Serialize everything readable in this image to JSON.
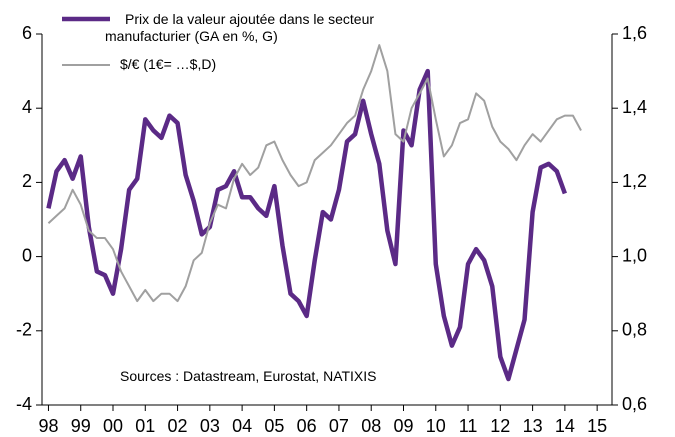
{
  "chart_data": {
    "type": "line",
    "annotation": "Sources : Datastream, Eurostat, NATIXIS",
    "xlim": [
      1997.8,
      2015.46
    ],
    "xticks": [
      {
        "value": 1998,
        "label": "98"
      },
      {
        "value": 1999,
        "label": "99"
      },
      {
        "value": 2000,
        "label": "00"
      },
      {
        "value": 2001,
        "label": "01"
      },
      {
        "value": 2002,
        "label": "02"
      },
      {
        "value": 2003,
        "label": "03"
      },
      {
        "value": 2004,
        "label": "04"
      },
      {
        "value": 2005,
        "label": "05"
      },
      {
        "value": 2006,
        "label": "06"
      },
      {
        "value": 2007,
        "label": "07"
      },
      {
        "value": 2008,
        "label": "08"
      },
      {
        "value": 2009,
        "label": "09"
      },
      {
        "value": 2010,
        "label": "10"
      },
      {
        "value": 2011,
        "label": "11"
      },
      {
        "value": 2012,
        "label": "12"
      },
      {
        "value": 2013,
        "label": "13"
      },
      {
        "value": 2014,
        "label": "14"
      },
      {
        "value": 2015,
        "label": "15"
      }
    ],
    "ylim": [
      -4,
      6
    ],
    "yticks": [
      -4,
      -2,
      0,
      2,
      4,
      6
    ],
    "y2lim": [
      0.6,
      1.6
    ],
    "y2ticks": [
      {
        "value": 0.6,
        "label": "0,6"
      },
      {
        "value": 0.8,
        "label": "0,8"
      },
      {
        "value": 1.0,
        "label": "1,0"
      },
      {
        "value": 1.2,
        "label": "1,2"
      },
      {
        "value": 1.4,
        "label": "1,4"
      },
      {
        "value": 1.6,
        "label": "1,6"
      }
    ],
    "grid": false,
    "series": [
      {
        "name": "Prix de la valeur ajoutée dans le secteur manufacturier (GA en %, G)",
        "color": "#5b2a86",
        "x": [
          1998,
          1998.25,
          1998.5,
          1998.75,
          1999,
          1999.25,
          1999.5,
          1999.75,
          2000,
          2000.25,
          2000.5,
          2000.75,
          2001,
          2001.25,
          2001.5,
          2001.75,
          2002,
          2002.25,
          2002.5,
          2002.75,
          2003,
          2003.25,
          2003.5,
          2003.75,
          2004,
          2004.25,
          2004.5,
          2004.75,
          2005,
          2005.25,
          2005.5,
          2005.75,
          2006,
          2006.25,
          2006.5,
          2006.75,
          2007,
          2007.25,
          2007.5,
          2007.75,
          2008,
          2008.25,
          2008.5,
          2008.75,
          2009,
          2009.25,
          2009.5,
          2009.75,
          2010,
          2010.25,
          2010.5,
          2010.75,
          2011,
          2011.25,
          2011.5,
          2011.75,
          2012,
          2012.25,
          2012.5,
          2012.75,
          2013,
          2013.25,
          2013.5,
          2013.75,
          2014
        ],
        "values": [
          1.3,
          2.3,
          2.6,
          2.1,
          2.7,
          0.8,
          -0.4,
          -0.5,
          -1.0,
          0.2,
          1.8,
          2.1,
          3.7,
          3.4,
          3.2,
          3.8,
          3.6,
          2.2,
          1.5,
          0.6,
          0.8,
          1.8,
          1.9,
          2.3,
          1.6,
          1.6,
          1.3,
          1.1,
          1.9,
          0.3,
          -1.0,
          -1.2,
          -1.6,
          -0.1,
          1.2,
          1.0,
          1.8,
          3.1,
          3.3,
          4.2,
          3.3,
          2.5,
          0.7,
          -0.2,
          3.4,
          3.0,
          4.5,
          5.0,
          -0.2,
          -1.6,
          -2.4,
          -1.9,
          -0.2,
          0.2,
          -0.1,
          -0.8,
          -2.7,
          -3.3,
          -2.5,
          -1.7,
          1.2,
          2.4,
          2.5,
          2.3,
          1.7
        ]
      },
      {
        "name": "$/€ (1€= …$,D)",
        "color": "#a0a0a0",
        "axis": "y2",
        "x": [
          1998,
          1998.25,
          1998.5,
          1998.75,
          1999,
          1999.25,
          1999.5,
          1999.75,
          2000,
          2000.25,
          2000.5,
          2000.75,
          2001,
          2001.25,
          2001.5,
          2001.75,
          2002,
          2002.25,
          2002.5,
          2002.75,
          2003,
          2003.25,
          2003.5,
          2003.75,
          2004,
          2004.25,
          2004.5,
          2004.75,
          2005,
          2005.25,
          2005.5,
          2005.75,
          2006,
          2006.25,
          2006.5,
          2006.75,
          2007,
          2007.25,
          2007.5,
          2007.75,
          2008,
          2008.25,
          2008.5,
          2008.75,
          2009,
          2009.25,
          2009.5,
          2009.75,
          2010,
          2010.25,
          2010.5,
          2010.75,
          2011,
          2011.25,
          2011.5,
          2011.75,
          2012,
          2012.25,
          2012.5,
          2012.75,
          2013,
          2013.25,
          2013.5,
          2013.75,
          2014,
          2014.25,
          2014.5
        ],
        "values": [
          1.09,
          1.11,
          1.13,
          1.18,
          1.14,
          1.07,
          1.05,
          1.05,
          1.02,
          0.96,
          0.92,
          0.88,
          0.91,
          0.88,
          0.9,
          0.9,
          0.88,
          0.92,
          0.99,
          1.01,
          1.09,
          1.14,
          1.13,
          1.21,
          1.25,
          1.22,
          1.24,
          1.3,
          1.31,
          1.26,
          1.22,
          1.19,
          1.2,
          1.26,
          1.28,
          1.3,
          1.33,
          1.36,
          1.38,
          1.45,
          1.5,
          1.57,
          1.5,
          1.33,
          1.31,
          1.4,
          1.44,
          1.48,
          1.37,
          1.27,
          1.3,
          1.36,
          1.37,
          1.44,
          1.42,
          1.35,
          1.31,
          1.29,
          1.26,
          1.3,
          1.33,
          1.31,
          1.34,
          1.37,
          1.38,
          1.38,
          1.34
        ]
      }
    ]
  }
}
